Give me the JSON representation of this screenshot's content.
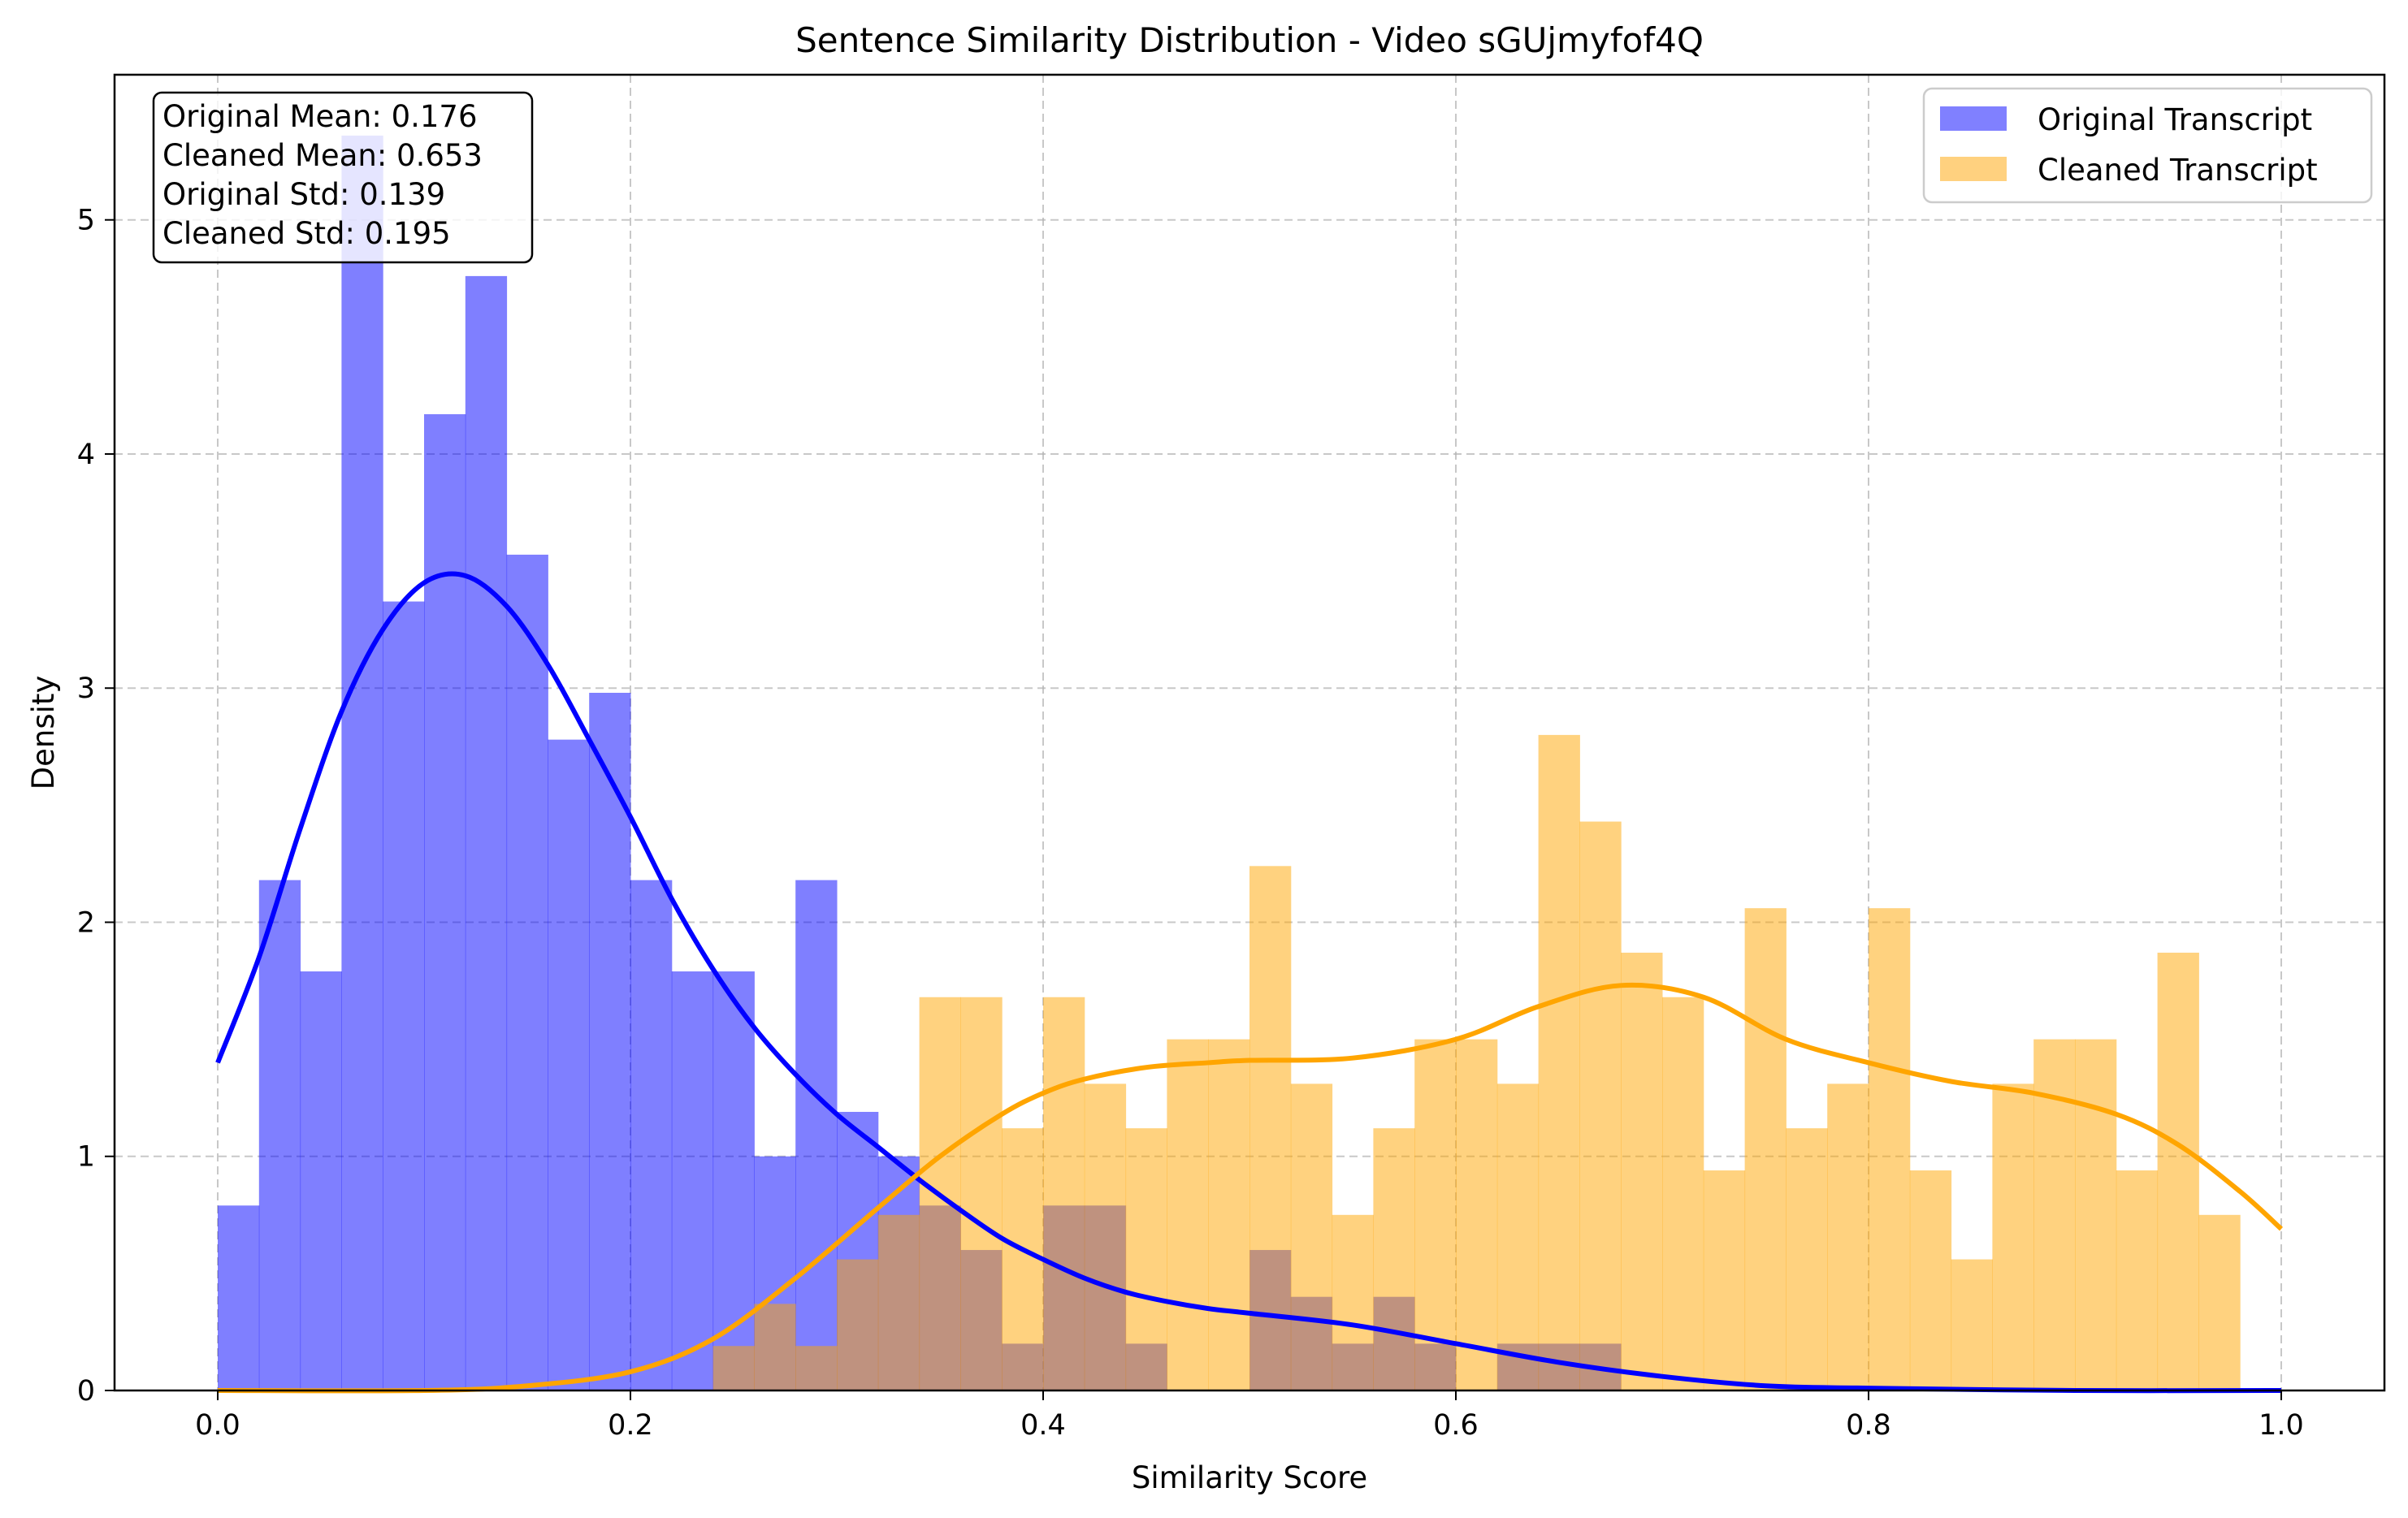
{
  "chart_data": {
    "type": "histogram",
    "title": "Sentence Similarity Distribution - Video sGUjmyfof4Q",
    "xlabel": "Similarity Score",
    "ylabel": "Density",
    "xlim": [
      -0.05,
      1.05
    ],
    "ylim": [
      0,
      5.62
    ],
    "xticks": [
      "0.0",
      "0.2",
      "0.4",
      "0.6",
      "0.8",
      "1.0"
    ],
    "yticks": [
      "0",
      "1",
      "2",
      "3",
      "4",
      "5"
    ],
    "grid": true,
    "legend_position": "upper-right",
    "bin_edges_range": [
      0,
      1
    ],
    "bin_count": 50,
    "series": [
      {
        "name": "Original Transcript",
        "color": "#0000ff",
        "fill_color": "#8080ff",
        "densities": [
          0.79,
          2.18,
          1.79,
          5.36,
          3.37,
          4.17,
          4.76,
          3.57,
          2.78,
          2.98,
          2.18,
          1.79,
          1.79,
          1.0,
          2.18,
          1.19,
          1.0,
          0.79,
          0.6,
          0.2,
          0.79,
          0.79,
          0.2,
          0,
          0,
          0.6,
          0.4,
          0.2,
          0.4,
          0.2,
          0,
          0.2,
          0.2,
          0.2,
          0,
          0,
          0,
          0,
          0,
          0,
          0,
          0,
          0,
          0,
          0,
          0,
          0,
          0,
          0,
          0
        ],
        "kde": {
          "x": [
            0,
            0.02,
            0.04,
            0.06,
            0.08,
            0.1,
            0.12,
            0.14,
            0.16,
            0.18,
            0.2,
            0.22,
            0.24,
            0.26,
            0.28,
            0.3,
            0.32,
            0.34,
            0.36,
            0.38,
            0.4,
            0.42,
            0.44,
            0.46,
            0.48,
            0.5,
            0.55,
            0.6,
            0.65,
            0.7,
            0.75,
            0.8,
            0.9,
            1.0
          ],
          "y": [
            1.4,
            1.85,
            2.4,
            2.9,
            3.25,
            3.45,
            3.48,
            3.35,
            3.1,
            2.78,
            2.45,
            2.1,
            1.8,
            1.55,
            1.35,
            1.18,
            1.04,
            0.9,
            0.77,
            0.65,
            0.56,
            0.48,
            0.42,
            0.38,
            0.35,
            0.33,
            0.28,
            0.2,
            0.12,
            0.06,
            0.02,
            0.01,
            0,
            0
          ]
        }
      },
      {
        "name": "Cleaned Transcript",
        "color": "#ffa500",
        "fill_color": "#ffd17f",
        "densities": [
          0,
          0,
          0,
          0,
          0,
          0,
          0,
          0,
          0,
          0,
          0,
          0,
          0.19,
          0.37,
          0.19,
          0.56,
          0.75,
          1.68,
          1.68,
          1.12,
          1.68,
          1.31,
          1.12,
          1.5,
          1.5,
          2.24,
          1.31,
          0.75,
          1.12,
          1.5,
          1.5,
          1.31,
          2.8,
          2.43,
          1.87,
          1.68,
          0.94,
          2.06,
          1.12,
          1.31,
          2.06,
          0.94,
          0.56,
          1.31,
          1.5,
          1.5,
          0.94,
          1.87,
          0.75,
          0
        ],
        "kde": {
          "x": [
            0,
            0.1,
            0.15,
            0.2,
            0.24,
            0.28,
            0.32,
            0.35,
            0.38,
            0.4,
            0.42,
            0.45,
            0.48,
            0.5,
            0.55,
            0.6,
            0.64,
            0.68,
            0.72,
            0.76,
            0.8,
            0.84,
            0.88,
            0.92,
            0.95,
            0.98,
            1.0
          ],
          "y": [
            0,
            0.0,
            0.02,
            0.08,
            0.22,
            0.48,
            0.78,
            1.0,
            1.18,
            1.27,
            1.33,
            1.38,
            1.4,
            1.41,
            1.42,
            1.5,
            1.64,
            1.73,
            1.68,
            1.5,
            1.4,
            1.32,
            1.27,
            1.18,
            1.05,
            0.85,
            0.69
          ]
        }
      }
    ],
    "stats_box": [
      "Original Mean: 0.176",
      "Cleaned Mean: 0.653",
      "Original Std: 0.139",
      "Cleaned Std: 0.195"
    ]
  }
}
